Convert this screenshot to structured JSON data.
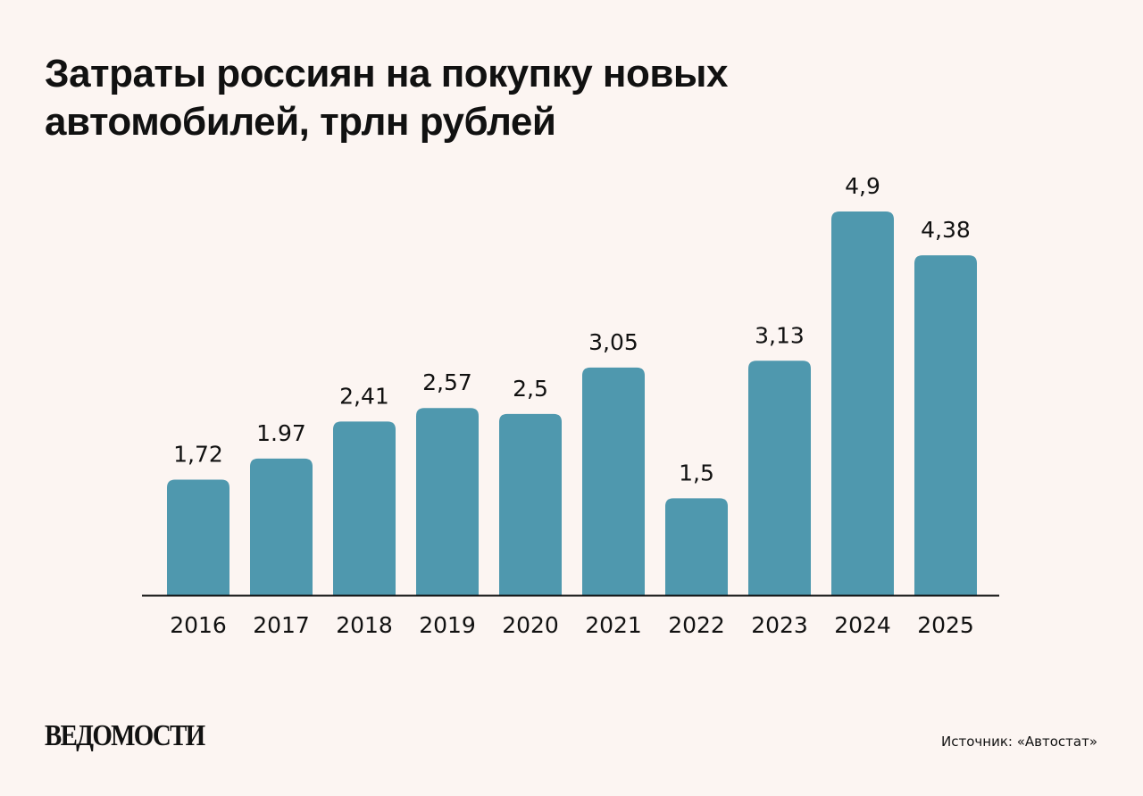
{
  "chart_data": {
    "type": "bar",
    "title": "Затраты россиян на покупку новых автомобилей, трлн рублей",
    "categories": [
      "2016",
      "2017",
      "2018",
      "2019",
      "2020",
      "2021",
      "2022",
      "2023",
      "2024",
      "2025"
    ],
    "values": [
      1.72,
      1.97,
      2.41,
      2.57,
      2.5,
      3.05,
      1.5,
      3.13,
      4.9,
      4.38
    ],
    "data_labels": [
      "1,72",
      "1.97",
      "2,41",
      "2,57",
      "2,5",
      "3,05",
      "1,5",
      "3,13",
      "4,9",
      "4,38"
    ],
    "xlabel": "",
    "ylabel": "",
    "ylim": [
      0.35,
      4.9
    ],
    "grid": false,
    "legend": "none",
    "bar_color": "#4f98ae"
  },
  "footer": {
    "logo": "ВЕДОМОСТИ",
    "source": "Источник: «Автостат»"
  }
}
